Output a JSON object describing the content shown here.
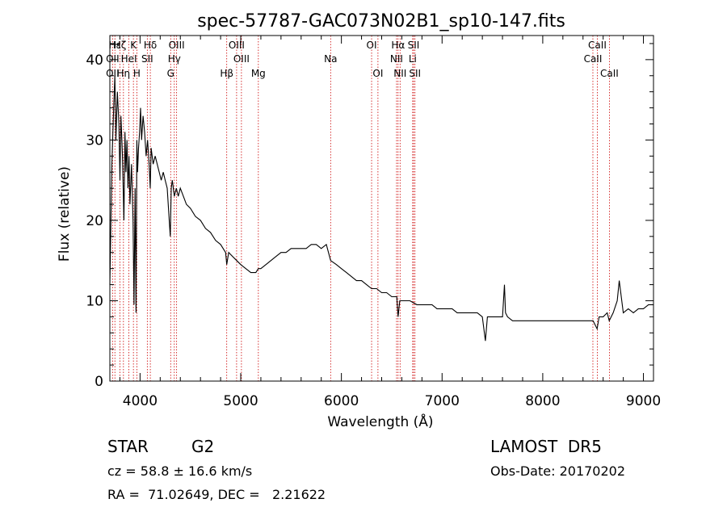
{
  "chart_data": {
    "type": "line",
    "title": "spec-57787-GAC073N02B1_sp10-147.fits",
    "xlabel": "Wavelength (Å)",
    "ylabel": "Flux (relative)",
    "xlim": [
      3700,
      9100
    ],
    "ylim": [
      0,
      43
    ],
    "x_ticks": [
      4000,
      5000,
      6000,
      7000,
      8000,
      9000
    ],
    "y_ticks": [
      0,
      10,
      20,
      30,
      40
    ],
    "x_tick_labels": [
      "4000",
      "5000",
      "6000",
      "7000",
      "8000",
      "9000"
    ],
    "y_tick_labels": [
      "0",
      "10",
      "20",
      "30",
      "40"
    ],
    "grid": false,
    "series": [
      {
        "color": "#000000",
        "x": [
          3700,
          3720,
          3735,
          3750,
          3760,
          3775,
          3790,
          3800,
          3810,
          3825,
          3840,
          3850,
          3860,
          3870,
          3880,
          3890,
          3900,
          3915,
          3930,
          3940,
          3950,
          3960,
          3968,
          3975,
          3985,
          3995,
          4005,
          4015,
          4030,
          4045,
          4060,
          4075,
          4090,
          4101,
          4110,
          4130,
          4150,
          4170,
          4190,
          4210,
          4230,
          4250,
          4270,
          4290,
          4300,
          4310,
          4320,
          4340,
          4360,
          4380,
          4400,
          4430,
          4460,
          4500,
          4550,
          4600,
          4650,
          4700,
          4750,
          4800,
          4850,
          4861,
          4880,
          4920,
          4960,
          5000,
          5050,
          5100,
          5150,
          5175,
          5200,
          5250,
          5300,
          5350,
          5400,
          5450,
          5500,
          5550,
          5600,
          5650,
          5700,
          5750,
          5800,
          5850,
          5893,
          5950,
          6000,
          6050,
          6100,
          6150,
          6200,
          6250,
          6300,
          6350,
          6400,
          6450,
          6500,
          6550,
          6563,
          6580,
          6620,
          6680,
          6750,
          6800,
          6850,
          6900,
          6950,
          7000,
          7050,
          7100,
          7150,
          7200,
          7250,
          7300,
          7350,
          7400,
          7430,
          7450,
          7500,
          7550,
          7600,
          7620,
          7630,
          7650,
          7700,
          7750,
          7800,
          7850,
          7900,
          7950,
          8000,
          8050,
          8100,
          8150,
          8200,
          8250,
          8300,
          8350,
          8400,
          8450,
          8500,
          8540,
          8560,
          8600,
          8640,
          8660,
          8700,
          8740,
          8760,
          8800,
          8850,
          8900,
          8950,
          9000,
          9050,
          9100
        ],
        "y": [
          12,
          27,
          33,
          38,
          30,
          36,
          32,
          25,
          33,
          28,
          20,
          31,
          26,
          30,
          24,
          28,
          22,
          27,
          20,
          9.5,
          24,
          8.5,
          30,
          26,
          29,
          31,
          34,
          30,
          33,
          31,
          28,
          30,
          27,
          24,
          29,
          27,
          28,
          27,
          26,
          25,
          26,
          25,
          24,
          20,
          18,
          24,
          25,
          23,
          24,
          23,
          24,
          23,
          22,
          21.5,
          20.5,
          20,
          19,
          18.5,
          17.5,
          17,
          16,
          14.5,
          16,
          15.5,
          15,
          14.5,
          14,
          13.5,
          13.5,
          14,
          14,
          14.5,
          15,
          15.5,
          16,
          16,
          16.5,
          16.5,
          16.5,
          16.5,
          17,
          17,
          16.5,
          17,
          15,
          14.5,
          14,
          13.5,
          13,
          12.5,
          12.5,
          12,
          11.5,
          11.5,
          11,
          11,
          10.5,
          10.5,
          8,
          10,
          10,
          10,
          9.5,
          9.5,
          9.5,
          9.5,
          9,
          9,
          9,
          9,
          8.5,
          8.5,
          8.5,
          8.5,
          8.5,
          8,
          5,
          8,
          8,
          8,
          8,
          12,
          8.5,
          8,
          7.5,
          7.5,
          7.5,
          7.5,
          7.5,
          7.5,
          7.5,
          7.5,
          7.5,
          7.5,
          7.5,
          7.5,
          7.5,
          7.5,
          7.5,
          7.5,
          7.5,
          6.5,
          8,
          8,
          8.5,
          7.5,
          8.5,
          10,
          12.5,
          8.5,
          9,
          8.5,
          9,
          9,
          9.5,
          9.5
        ]
      }
    ],
    "spectral_lines": [
      {
        "name": "Hε",
        "wavelength": 3750,
        "row": 0
      },
      {
        "name": "Hζ",
        "wavelength": 3800,
        "row": 0
      },
      {
        "name": "K",
        "wavelength": 3934,
        "row": 0
      },
      {
        "name": "Hδ",
        "wavelength": 4102,
        "row": 0
      },
      {
        "name": "OIII",
        "wavelength": 4363,
        "row": 0
      },
      {
        "name": "OIII",
        "wavelength": 4959,
        "row": 0
      },
      {
        "name": "OI",
        "wavelength": 6300,
        "row": 0
      },
      {
        "name": "Hα",
        "wavelength": 6563,
        "row": 0
      },
      {
        "name": "SII",
        "wavelength": 6717,
        "row": 0
      },
      {
        "name": "CaII",
        "wavelength": 8542,
        "row": 0
      },
      {
        "name": "OII",
        "wavelength": 3727,
        "row": 1
      },
      {
        "name": "HeI",
        "wavelength": 3889,
        "row": 1
      },
      {
        "name": "SII",
        "wavelength": 4072,
        "row": 1
      },
      {
        "name": "Hγ",
        "wavelength": 4340,
        "row": 1
      },
      {
        "name": "OIII",
        "wavelength": 5007,
        "row": 1
      },
      {
        "name": "Na",
        "wavelength": 5893,
        "row": 1
      },
      {
        "name": "NII",
        "wavelength": 6548,
        "row": 1
      },
      {
        "name": "Li",
        "wavelength": 6708,
        "row": 1
      },
      {
        "name": "CaII",
        "wavelength": 8498,
        "row": 1
      },
      {
        "name": "OII",
        "wavelength": 3727,
        "row": 2
      },
      {
        "name": "Hη",
        "wavelength": 3835,
        "row": 2
      },
      {
        "name": "H",
        "wavelength": 3968,
        "row": 2
      },
      {
        "name": "G",
        "wavelength": 4304,
        "row": 2
      },
      {
        "name": "Hβ",
        "wavelength": 4861,
        "row": 2
      },
      {
        "name": "Mg",
        "wavelength": 5175,
        "row": 2
      },
      {
        "name": "OI",
        "wavelength": 6363,
        "row": 2
      },
      {
        "name": "NII",
        "wavelength": 6583,
        "row": 2
      },
      {
        "name": "SII",
        "wavelength": 6731,
        "row": 2
      },
      {
        "name": "CaII",
        "wavelength": 8662,
        "row": 2
      }
    ]
  },
  "info": {
    "class_label": "STAR",
    "subclass": "G2",
    "survey": "LAMOST  DR5",
    "cz": "cz = 58.8 ± 16.6 km/s",
    "obs_date": "Obs-Date: 20170202",
    "coords": "RA =  71.02649, DEC =   2.21622"
  },
  "colors": {
    "line": "#000000",
    "marker_lines": "#cc0000",
    "background": "#ffffff"
  }
}
